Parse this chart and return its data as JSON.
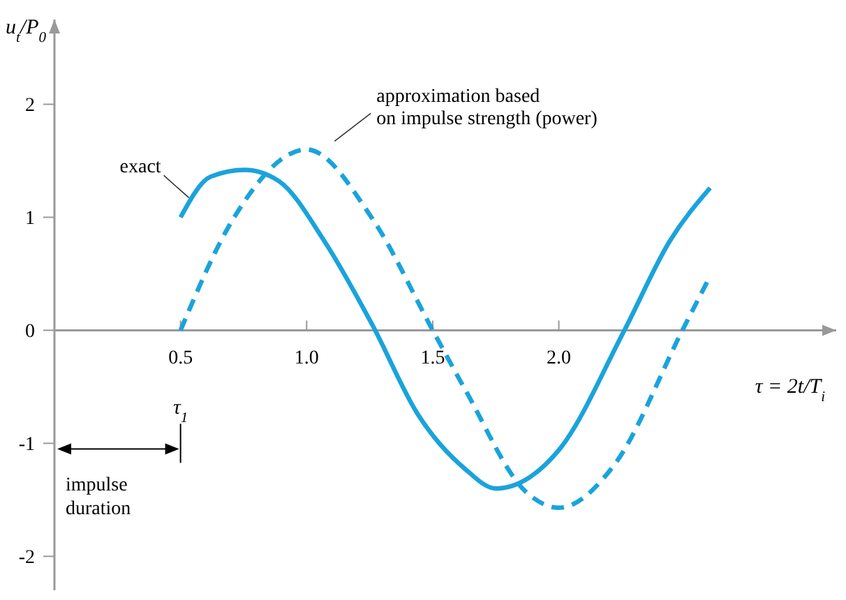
{
  "chart_data": {
    "type": "line",
    "xlabel": "τ = 2t/T$_{i}$",
    "ylabel": "u$_{t}$/P$_{0}$",
    "xlim": [
      0,
      3.1
    ],
    "ylim": [
      -2.3,
      2.75
    ],
    "xticks": [
      0.5,
      {
        "value": 1.0,
        "label": "1.0"
      },
      1.5,
      {
        "value": 2.0,
        "label": "2.0"
      }
    ],
    "yticks": [
      -2,
      -1,
      0,
      1,
      2
    ],
    "grid": false,
    "marker": "none",
    "series": [
      {
        "name": "exact",
        "color": "#1aa3dc",
        "line_style": "solid",
        "x": [
          0.5,
          0.62,
          0.755,
          0.89,
          1.07,
          1.26,
          1.44,
          1.63,
          1.75,
          2.0,
          2.26,
          2.44,
          2.6
        ],
        "values": [
          1.0,
          1.36,
          1.42,
          1.32,
          0.79,
          0.05,
          -0.74,
          -1.23,
          -1.4,
          -1.06,
          0,
          0.79,
          1.26
        ]
      },
      {
        "name": "approximation based on impulse strength (power)",
        "color": "#1aa3dc",
        "line_style": "dashed",
        "x": [
          0.5,
          0.71,
          1.0,
          1.26,
          1.5,
          1.63,
          1.87,
          2.0,
          2.22,
          2.49,
          2.6
        ],
        "values": [
          0,
          0.99,
          1.6,
          0.99,
          0,
          -0.53,
          -1.43,
          -1.57,
          -1.19,
          0,
          0.48
        ]
      }
    ],
    "annotations": [
      "τ$_{1}$",
      "impulse duration"
    ]
  }
}
